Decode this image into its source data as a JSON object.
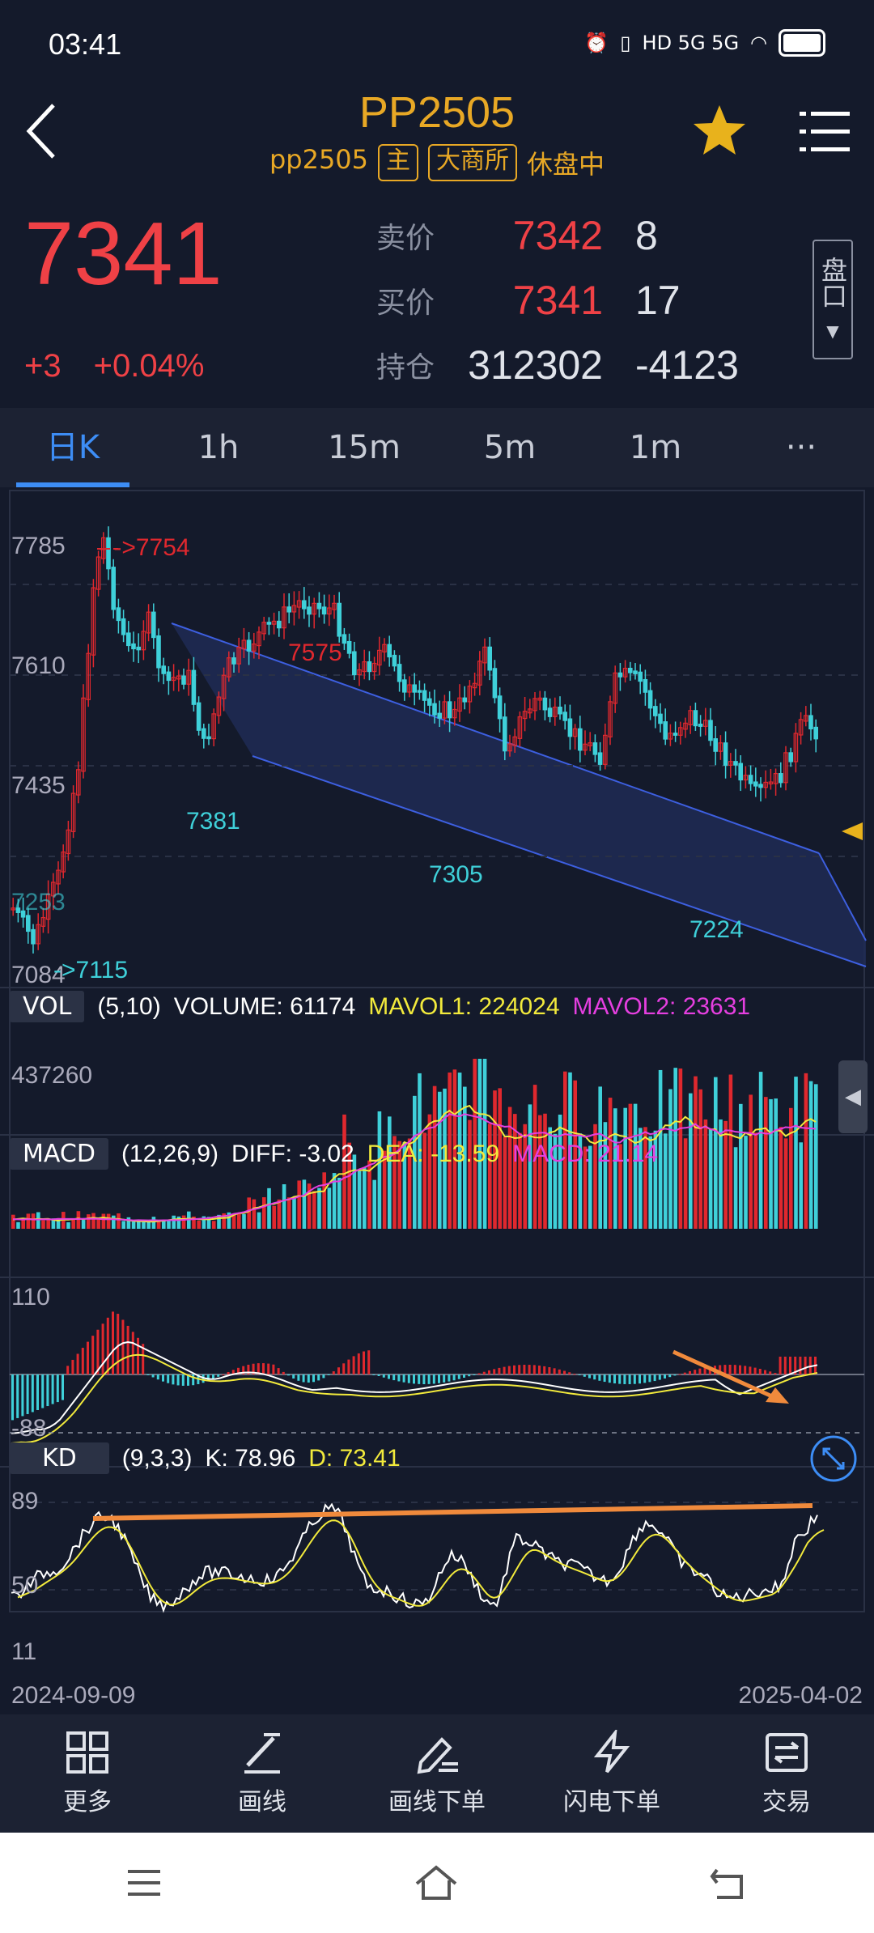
{
  "status": {
    "time": "03:41",
    "network": "HD 5G 5G"
  },
  "header": {
    "title": "PP2505",
    "subtitle": "pp2505",
    "tags": [
      "主",
      "大商所"
    ],
    "state": "休盘中"
  },
  "quote": {
    "last": "7341",
    "change": "+3",
    "change_pct": "+0.04%",
    "ask_label": "卖价",
    "ask": "7342",
    "ask_vol": "8",
    "bid_label": "买价",
    "bid": "7341",
    "bid_vol": "17",
    "oi_label": "持仓",
    "oi": "312302",
    "oi_change": "-4123",
    "pankou": "盘口"
  },
  "tabs": [
    "日K",
    "1h",
    "15m",
    "5m",
    "1m",
    "···"
  ],
  "chart": {
    "price_axis": [
      "7785",
      "7610",
      "7435",
      "7084"
    ],
    "annotations": {
      "high": "- ->7754",
      "low": "->7115",
      "p7575": "7575",
      "p7381": "7381",
      "p7305": "7305",
      "p7224": "7224",
      "overlay_value": "7253"
    },
    "vol": {
      "name": "VOL",
      "params": "(5,10)",
      "volume": "VOLUME: 61174",
      "mavol1": "MAVOL1: 224024",
      "mavol2": "MAVOL2: 23631",
      "axis": "437260"
    },
    "macd": {
      "name": "MACD",
      "params": "(12,26,9)",
      "diff": "DIFF: -3.02",
      "dea": "DEA: -13.59",
      "macd": "MACD: 21.14",
      "axis_top": "110",
      "axis_bottom": "-88"
    },
    "kd": {
      "name": "KD",
      "params": "(9,3,3)",
      "k": "K: 78.96",
      "d": "D: 73.41",
      "axis": [
        "89",
        "50",
        "11"
      ]
    },
    "date_start": "2024-09-09",
    "date_end": "2025-04-02",
    "colors": {
      "up": "#e0282e",
      "down": "#3fd0d9",
      "channel": "#2f57d6",
      "yellow": "#f2ea3c",
      "magenta": "#e53fe0",
      "orange": "#f08a3c"
    }
  },
  "toolbar": [
    "更多",
    "画线",
    "画线下单",
    "闪电下单",
    "交易"
  ]
}
